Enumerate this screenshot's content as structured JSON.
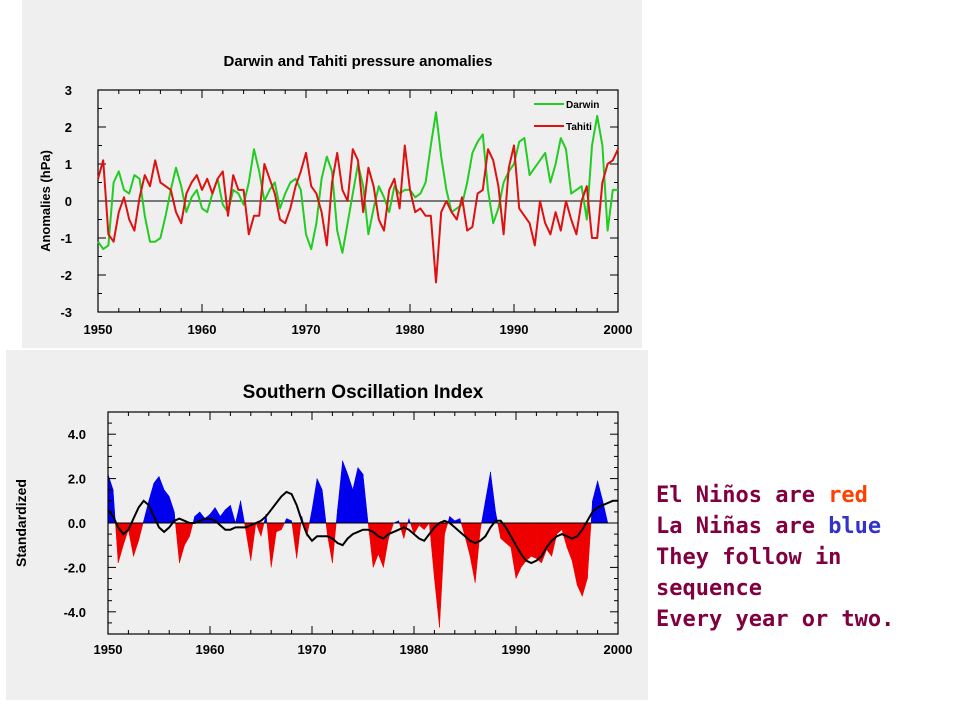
{
  "chart_data": [
    {
      "type": "line",
      "title": "Darwin and Tahiti pressure anomalies",
      "xlabel": "",
      "ylabel": "Anomalies (hPa)",
      "xlim": [
        1950,
        2000
      ],
      "ylim": [
        -3,
        3
      ],
      "xticks": [
        "1950",
        "1960",
        "1970",
        "1980",
        "1990",
        "2000"
      ],
      "yticks": [
        "3",
        "2",
        "1",
        "0",
        "-1",
        "-2",
        "-3"
      ],
      "legend_position": "top-right",
      "series": [
        {
          "name": "Darwin",
          "color": "#22cc22",
          "x": [
            1950,
            1950.5,
            1951,
            1951.5,
            1952,
            1952.5,
            1953,
            1953.5,
            1954,
            1954.5,
            1955,
            1955.5,
            1956,
            1956.5,
            1957,
            1957.5,
            1958,
            1958.5,
            1959,
            1959.5,
            1960,
            1960.5,
            1961,
            1961.5,
            1962,
            1962.5,
            1963,
            1963.5,
            1964,
            1964.5,
            1965,
            1965.5,
            1966,
            1966.5,
            1967,
            1967.5,
            1968,
            1968.5,
            1969,
            1969.5,
            1970,
            1970.5,
            1971,
            1971.5,
            1972,
            1972.5,
            1973,
            1973.5,
            1974,
            1974.5,
            1975,
            1975.5,
            1976,
            1976.5,
            1977,
            1977.5,
            1978,
            1978.5,
            1979,
            1979.5,
            1980,
            1980.5,
            1981,
            1981.5,
            1982,
            1982.5,
            1983,
            1983.5,
            1984,
            1984.5,
            1985,
            1985.5,
            1986,
            1986.5,
            1987,
            1987.5,
            1988,
            1988.5,
            1989,
            1989.5,
            1990,
            1990.5,
            1991,
            1991.5,
            1992,
            1992.5,
            1993,
            1993.5,
            1994,
            1994.5,
            1995,
            1995.5,
            1996,
            1996.5,
            1997,
            1997.5,
            1998,
            1998.5,
            1999,
            1999.5,
            2000
          ],
          "values": [
            -1.1,
            -1.3,
            -1.2,
            0.5,
            0.8,
            0.3,
            0.2,
            0.7,
            0.6,
            -0.4,
            -1.1,
            -1.1,
            -1.0,
            -0.4,
            0.3,
            0.9,
            0.4,
            -0.3,
            0.1,
            0.3,
            -0.2,
            -0.3,
            0.2,
            0.6,
            -0.1,
            -0.3,
            0.3,
            0.2,
            -0.1,
            0.5,
            1.4,
            0.8,
            0.0,
            0.3,
            0.5,
            -0.2,
            0.2,
            0.5,
            0.6,
            0.3,
            -0.9,
            -1.3,
            -0.6,
            0.6,
            1.2,
            0.8,
            -0.8,
            -1.4,
            -0.6,
            0.2,
            1.0,
            0.4,
            -0.9,
            -0.2,
            0.4,
            0.1,
            -0.3,
            0.4,
            0.2,
            0.3,
            0.3,
            0.1,
            0.2,
            0.5,
            1.5,
            2.4,
            1.2,
            0.3,
            -0.3,
            -0.2,
            -0.1,
            0.5,
            1.3,
            1.6,
            1.8,
            0.3,
            -0.6,
            -0.2,
            0.5,
            0.8,
            1.0,
            1.6,
            1.7,
            0.7,
            0.9,
            1.1,
            1.3,
            0.5,
            1.0,
            1.7,
            1.4,
            0.2,
            0.3,
            0.4,
            -0.5,
            1.5,
            2.3,
            1.5,
            -0.8,
            0.3,
            0.3
          ]
        },
        {
          "name": "Tahiti",
          "color": "#dd1111",
          "x": [
            1950,
            1950.5,
            1951,
            1951.5,
            1952,
            1952.5,
            1953,
            1953.5,
            1954,
            1954.5,
            1955,
            1955.5,
            1956,
            1956.5,
            1957,
            1957.5,
            1958,
            1958.5,
            1959,
            1959.5,
            1960,
            1960.5,
            1961,
            1961.5,
            1962,
            1962.5,
            1963,
            1963.5,
            1964,
            1964.5,
            1965,
            1965.5,
            1966,
            1966.5,
            1967,
            1967.5,
            1968,
            1968.5,
            1969,
            1969.5,
            1970,
            1970.5,
            1971,
            1971.5,
            1972,
            1972.5,
            1973,
            1973.5,
            1974,
            1974.5,
            1975,
            1975.5,
            1976,
            1976.5,
            1977,
            1977.5,
            1978,
            1978.5,
            1979,
            1979.5,
            1980,
            1980.5,
            1981,
            1981.5,
            1982,
            1982.5,
            1983,
            1983.5,
            1984,
            1984.5,
            1985,
            1985.5,
            1986,
            1986.5,
            1987,
            1987.5,
            1988,
            1988.5,
            1989,
            1989.5,
            1990,
            1990.5,
            1991,
            1991.5,
            1992,
            1992.5,
            1993,
            1993.5,
            1994,
            1994.5,
            1995,
            1995.5,
            1996,
            1996.5,
            1997,
            1997.5,
            1998,
            1998.5,
            1999,
            1999.5,
            2000
          ],
          "values": [
            0.6,
            1.1,
            -0.9,
            -1.1,
            -0.3,
            0.1,
            -0.5,
            -0.8,
            0.1,
            0.7,
            0.4,
            1.1,
            0.5,
            0.4,
            0.3,
            -0.3,
            -0.6,
            0.2,
            0.5,
            0.7,
            0.3,
            0.6,
            0.2,
            0.6,
            0.8,
            -0.4,
            0.7,
            0.3,
            0.3,
            -0.9,
            -0.4,
            -0.4,
            1.0,
            0.6,
            0.2,
            -0.5,
            -0.6,
            -0.2,
            0.4,
            0.8,
            1.3,
            0.4,
            0.2,
            -0.3,
            -1.2,
            0.5,
            1.3,
            0.3,
            0.0,
            1.4,
            1.1,
            -0.3,
            0.9,
            0.4,
            -0.5,
            -0.8,
            0.3,
            0.6,
            -0.2,
            1.5,
            0.3,
            -0.3,
            -0.2,
            -0.4,
            -0.4,
            -2.2,
            -0.3,
            0.0,
            -0.3,
            -0.5,
            0.1,
            -0.8,
            -0.7,
            0.2,
            0.3,
            1.4,
            1.1,
            0.4,
            -0.9,
            0.9,
            1.5,
            -0.2,
            -0.4,
            -0.6,
            -1.2,
            0.0,
            -0.6,
            -0.9,
            -0.3,
            -0.8,
            0.0,
            -0.5,
            -0.9,
            0.0,
            0.4,
            -1.0,
            -1.0,
            0.5,
            1.0,
            1.1,
            1.4
          ]
        }
      ]
    },
    {
      "type": "area",
      "title": "Southern Oscillation Index",
      "xlabel": "",
      "ylabel": "Standardized",
      "xlim": [
        1950,
        2000
      ],
      "ylim": [
        -5,
        5
      ],
      "xticks": [
        "1950",
        "1960",
        "1970",
        "1980",
        "1990",
        "2000"
      ],
      "yticks": [
        "4.0",
        "2.0",
        "0.0",
        "-2.0",
        "-4.0"
      ],
      "positive_color": "#0000ee",
      "negative_color": "#ee0000",
      "x": [
        1950,
        1950.5,
        1951,
        1951.5,
        1952,
        1952.5,
        1953,
        1953.5,
        1954,
        1954.5,
        1955,
        1955.5,
        1956,
        1956.5,
        1957,
        1957.5,
        1958,
        1958.5,
        1959,
        1959.5,
        1960,
        1960.5,
        1961,
        1961.5,
        1962,
        1962.5,
        1963,
        1963.5,
        1964,
        1964.5,
        1965,
        1965.5,
        1966,
        1966.5,
        1967,
        1967.5,
        1968,
        1968.5,
        1969,
        1969.5,
        1970,
        1970.5,
        1971,
        1971.5,
        1972,
        1972.5,
        1973,
        1973.5,
        1974,
        1974.5,
        1975,
        1975.5,
        1976,
        1976.5,
        1977,
        1977.5,
        1978,
        1978.5,
        1979,
        1979.5,
        1980,
        1980.5,
        1981,
        1981.5,
        1982,
        1982.5,
        1983,
        1983.5,
        1984,
        1984.5,
        1985,
        1985.5,
        1986,
        1986.5,
        1987,
        1987.5,
        1988,
        1988.5,
        1989,
        1989.5,
        1990,
        1990.5,
        1991,
        1991.5,
        1992,
        1992.5,
        1993,
        1993.5,
        1994,
        1994.5,
        1995,
        1995.5,
        1996,
        1996.5,
        1997,
        1997.5,
        1998,
        1998.5,
        1999,
        1999.5,
        2000
      ],
      "values": [
        2.2,
        1.5,
        -1.8,
        -1.0,
        -0.3,
        -1.5,
        -0.8,
        0.1,
        1.0,
        1.8,
        2.1,
        1.5,
        1.2,
        0.5,
        -1.8,
        -1.0,
        -0.6,
        0.3,
        0.5,
        0.2,
        0.4,
        0.7,
        0.3,
        0.6,
        0.8,
        0.0,
        1.0,
        -0.3,
        -1.7,
        0.0,
        -0.6,
        0.4,
        -2.0,
        -0.4,
        -0.3,
        0.2,
        0.1,
        -1.6,
        0.3,
        -0.6,
        0.6,
        2.0,
        1.5,
        -0.5,
        -1.8,
        0.6,
        2.8,
        2.2,
        1.5,
        2.5,
        2.2,
        0.0,
        -2.0,
        -1.4,
        -2.0,
        -0.7,
        0.0,
        0.1,
        -0.7,
        0.2,
        -0.5,
        -0.1,
        -0.3,
        0.0,
        -2.5,
        -4.7,
        -0.5,
        0.3,
        0.1,
        0.2,
        -0.6,
        -1.5,
        -2.7,
        -0.3,
        1.0,
        2.3,
        0.5,
        -0.7,
        -0.9,
        -1.1,
        -2.5,
        -2.0,
        -1.7,
        -1.5,
        -1.6,
        -1.8,
        -1.2,
        -1.5,
        -0.5,
        -0.3,
        -1.1,
        -1.7,
        -2.8,
        -3.3,
        -2.5,
        1.0,
        1.9,
        1.0,
        0.0,
        0.0,
        0.0
      ],
      "smooth_series": {
        "color": "#000000",
        "values": [
          0.6,
          0.3,
          -0.2,
          -0.5,
          -0.3,
          0.2,
          0.7,
          1.0,
          0.8,
          0.3,
          -0.2,
          -0.4,
          -0.2,
          0.1,
          0.2,
          0.1,
          0.0,
          0.0,
          0.1,
          0.2,
          0.2,
          0.1,
          -0.1,
          -0.3,
          -0.3,
          -0.2,
          -0.2,
          -0.2,
          -0.1,
          0.0,
          0.1,
          0.3,
          0.6,
          0.9,
          1.2,
          1.4,
          1.3,
          0.8,
          0.1,
          -0.5,
          -0.8,
          -0.6,
          -0.6,
          -0.6,
          -0.7,
          -0.9,
          -1.0,
          -0.7,
          -0.5,
          -0.4,
          -0.3,
          -0.3,
          -0.4,
          -0.6,
          -0.7,
          -0.5,
          -0.4,
          -0.3,
          -0.2,
          -0.3,
          -0.5,
          -0.7,
          -0.8,
          -0.5,
          -0.2,
          0.0,
          0.1,
          0.0,
          -0.2,
          -0.4,
          -0.6,
          -0.8,
          -0.9,
          -0.8,
          -0.6,
          -0.2,
          0.1,
          0.1,
          -0.2,
          -0.6,
          -1.0,
          -1.4,
          -1.7,
          -1.8,
          -1.7,
          -1.5,
          -1.1,
          -0.8,
          -0.6,
          -0.5,
          -0.6,
          -0.7,
          -0.6,
          -0.3,
          0.1,
          0.5,
          0.7,
          0.8,
          0.9,
          1.0,
          1.0
        ]
      }
    }
  ],
  "caption": {
    "line1_prefix": "El Niños are ",
    "line1_word": "red",
    "line2_prefix": "La Niñas are ",
    "line2_word": "blue",
    "line3": "They follow in",
    "line4": "sequence",
    "line5": "Every year or two."
  }
}
